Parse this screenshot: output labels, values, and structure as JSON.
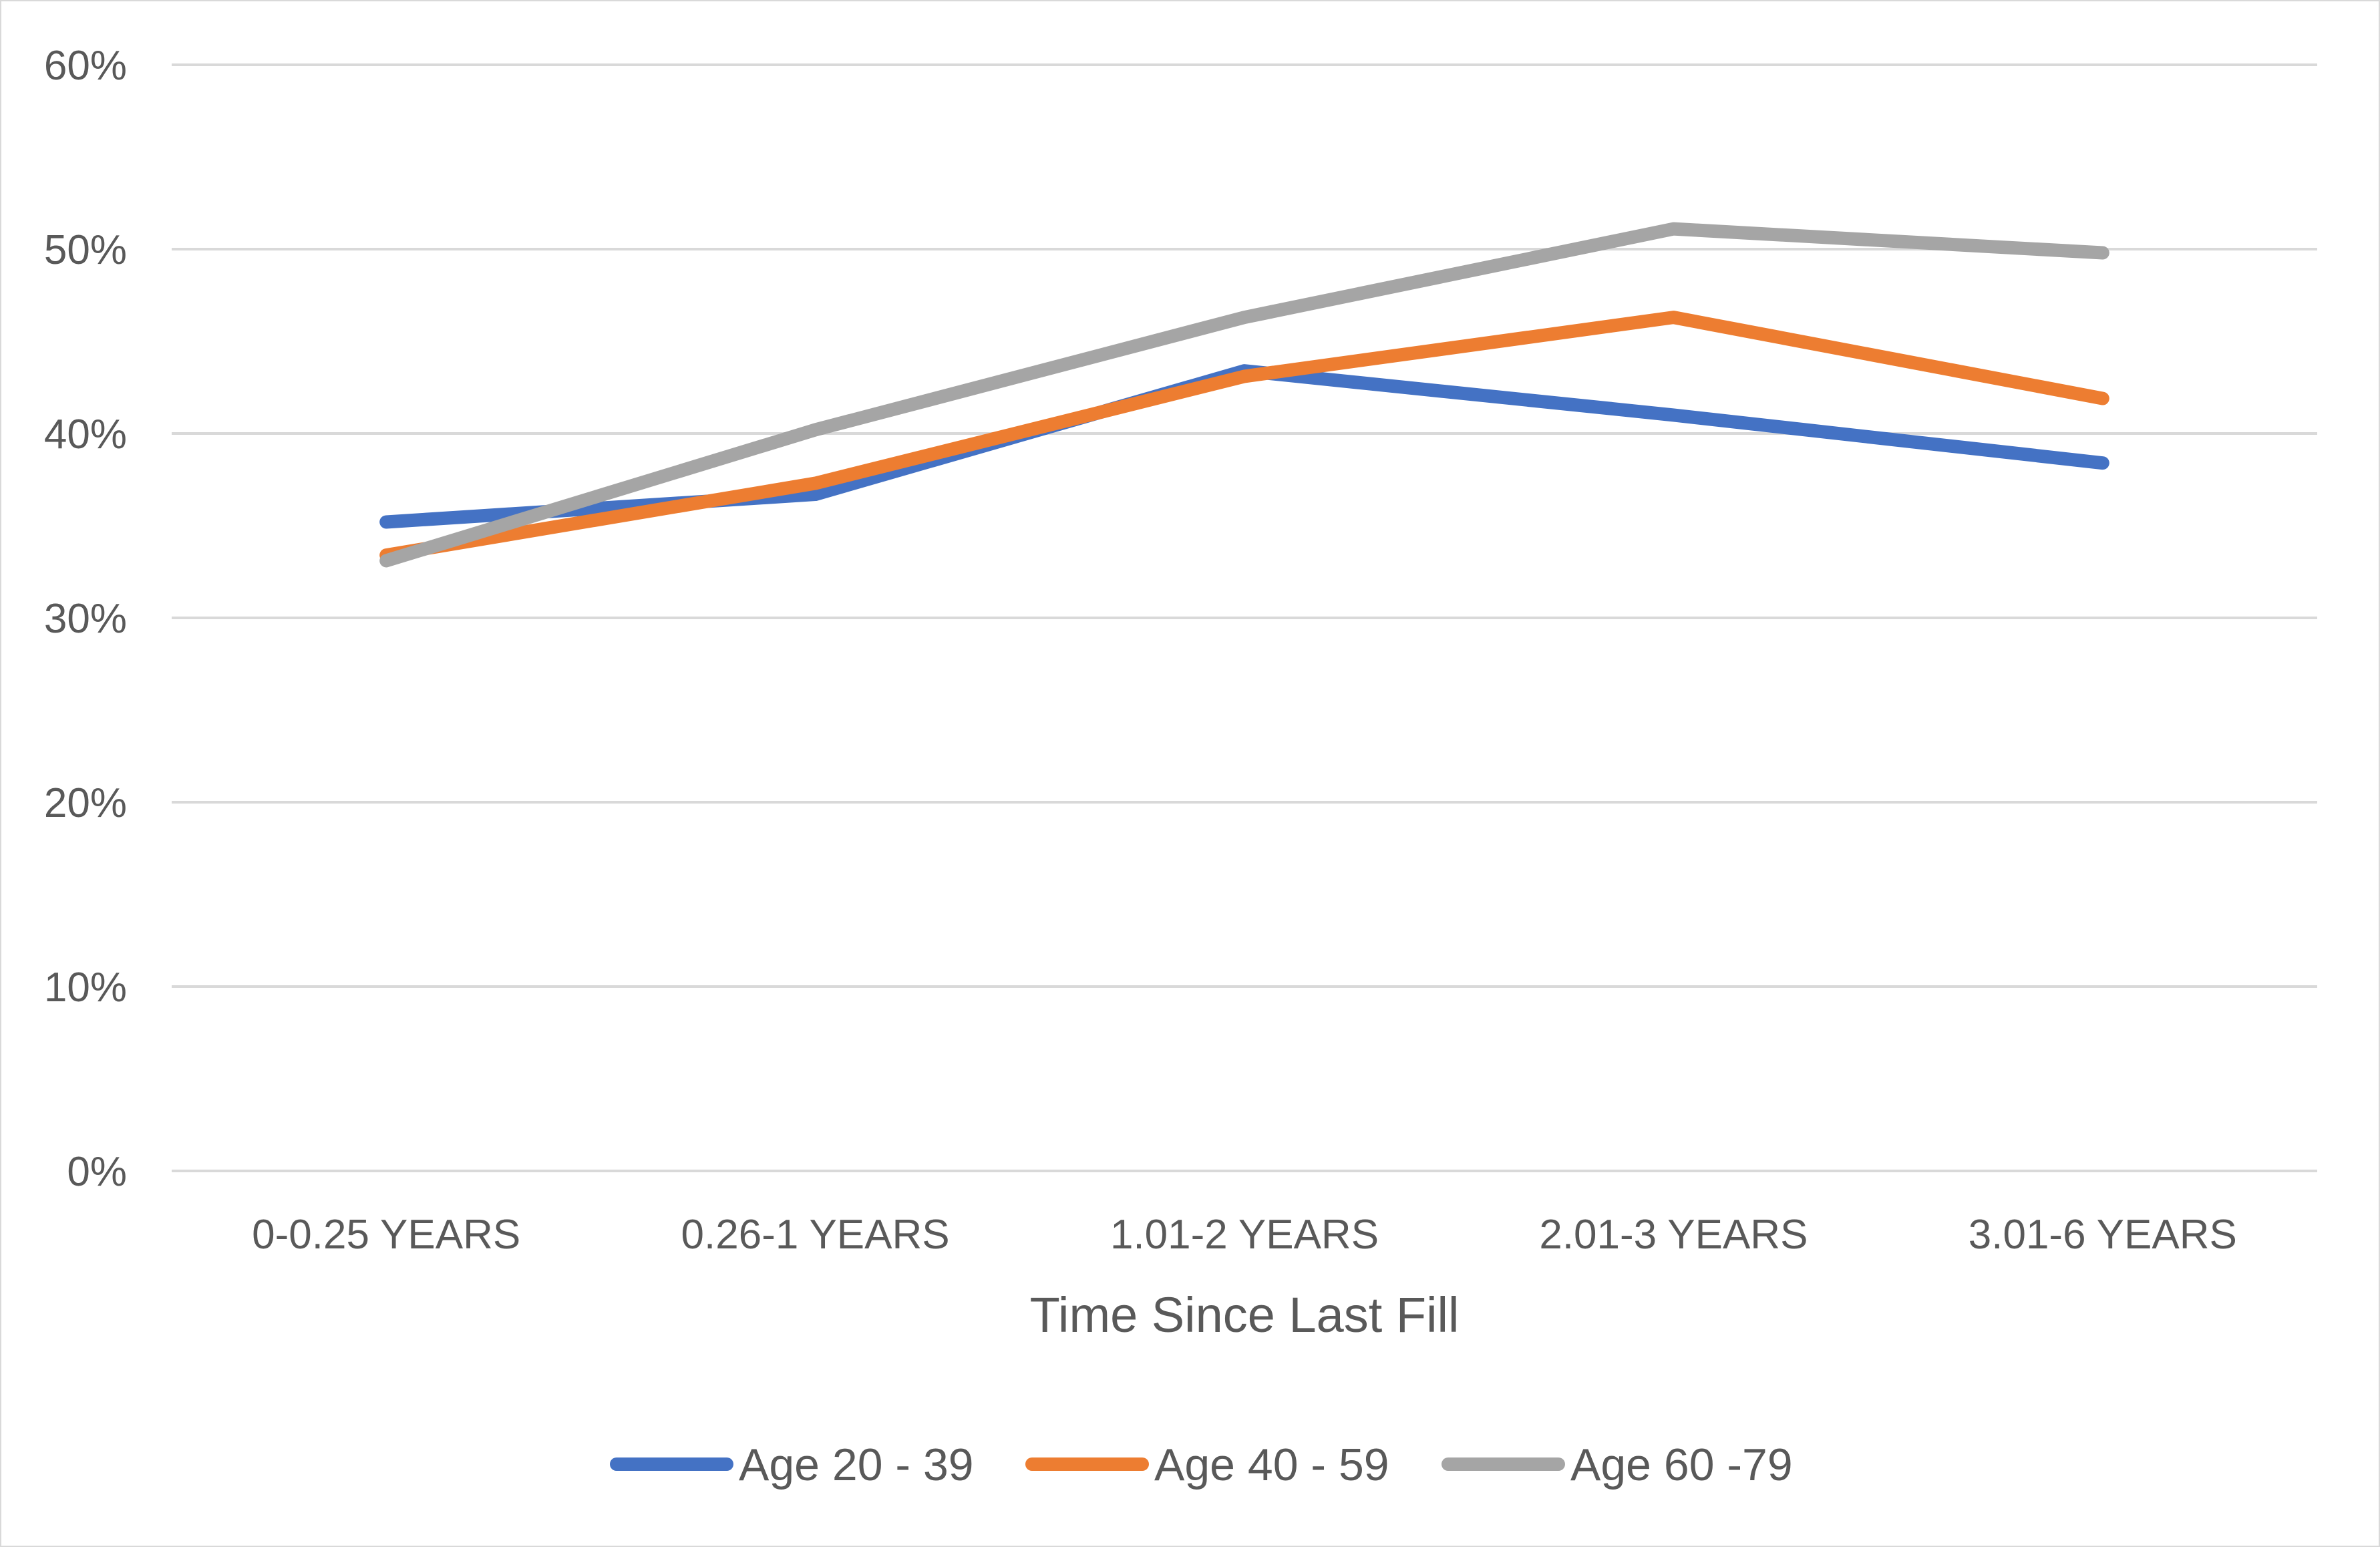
{
  "chart_data": {
    "type": "line",
    "title": "",
    "xlabel": "Time Since Last Fill",
    "ylabel": "",
    "categories": [
      "0-0.25 YEARS",
      "0.26-1 YEARS",
      "1.01-2 YEARS",
      "2.01-3 YEARS",
      "3.01-6 YEARS"
    ],
    "ylim": [
      0,
      0.6
    ],
    "yticks": [
      0,
      0.1,
      0.2,
      0.3,
      0.4,
      0.5,
      0.6
    ],
    "ytick_labels": [
      "0%",
      "10%",
      "20%",
      "30%",
      "40%",
      "50%",
      "60%"
    ],
    "grid": true,
    "legend_position": "bottom",
    "series": [
      {
        "name": "Age 20 - 39",
        "color": "#4472c4",
        "values": [
          0.352,
          0.367,
          0.434,
          0.41,
          0.384
        ]
      },
      {
        "name": "Age 40 - 59",
        "color": "#ed7d31",
        "values": [
          0.334,
          0.373,
          0.431,
          0.463,
          0.419
        ]
      },
      {
        "name": "Age 60 -79",
        "color": "#a5a5a5",
        "values": [
          0.331,
          0.402,
          0.463,
          0.511,
          0.498
        ]
      }
    ]
  }
}
